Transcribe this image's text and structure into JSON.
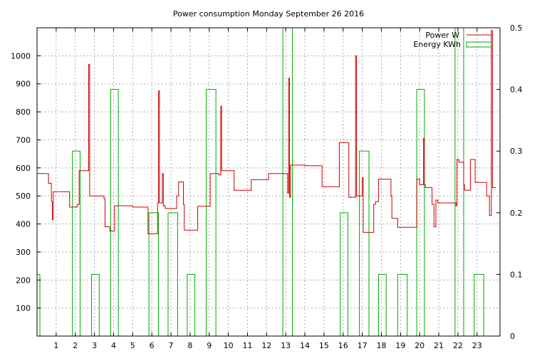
{
  "chart_data": {
    "type": "line",
    "title": "Power consumption Monday September 26 2016",
    "xlabel": "",
    "ylabel": "",
    "grid": true,
    "legend_position": "top-right",
    "x_ticks": [
      1,
      2,
      3,
      4,
      5,
      6,
      7,
      8,
      9,
      10,
      11,
      12,
      13,
      14,
      15,
      16,
      17,
      18,
      19,
      20,
      21,
      22,
      23
    ],
    "xlim": [
      0,
      24.2
    ],
    "y_ticks": [
      100,
      200,
      300,
      400,
      500,
      600,
      700,
      800,
      900,
      1000
    ],
    "ylim": [
      0,
      1100
    ],
    "y2_ticks": [
      0,
      0.1,
      0.2,
      0.3,
      0.4,
      0.5
    ],
    "y2lim": [
      0,
      0.5
    ],
    "series": [
      {
        "name": "Power W",
        "axis": "y",
        "color": "#cc0000",
        "style": "step",
        "points": [
          [
            0.0,
            580
          ],
          [
            0.6,
            545
          ],
          [
            0.75,
            480
          ],
          [
            0.8,
            415
          ],
          [
            0.85,
            515
          ],
          [
            1.7,
            460
          ],
          [
            2.1,
            470
          ],
          [
            2.2,
            590
          ],
          [
            2.7,
            970
          ],
          [
            2.75,
            500
          ],
          [
            3.5,
            490
          ],
          [
            3.55,
            390
          ],
          [
            3.8,
            375
          ],
          [
            4.05,
            465
          ],
          [
            5.0,
            460
          ],
          [
            5.8,
            365
          ],
          [
            6.3,
            475
          ],
          [
            6.35,
            875
          ],
          [
            6.4,
            475
          ],
          [
            6.55,
            580
          ],
          [
            6.6,
            465
          ],
          [
            6.7,
            455
          ],
          [
            7.3,
            500
          ],
          [
            7.4,
            550
          ],
          [
            7.65,
            470
          ],
          [
            7.7,
            378
          ],
          [
            8.4,
            463
          ],
          [
            9.05,
            580
          ],
          [
            9.5,
            575
          ],
          [
            9.6,
            820
          ],
          [
            9.65,
            590
          ],
          [
            10.3,
            520
          ],
          [
            11.2,
            558
          ],
          [
            12.1,
            580
          ],
          [
            13.1,
            510
          ],
          [
            13.15,
            920
          ],
          [
            13.2,
            495
          ],
          [
            13.25,
            610
          ],
          [
            14.0,
            608
          ],
          [
            14.9,
            533
          ],
          [
            15.8,
            690
          ],
          [
            16.3,
            495
          ],
          [
            16.65,
            1000
          ],
          [
            16.7,
            500
          ],
          [
            17.0,
            565
          ],
          [
            17.05,
            370
          ],
          [
            17.6,
            470
          ],
          [
            17.7,
            480
          ],
          [
            17.85,
            560
          ],
          [
            18.5,
            500
          ],
          [
            18.55,
            420
          ],
          [
            18.85,
            388
          ],
          [
            19.85,
            560
          ],
          [
            20.0,
            540
          ],
          [
            20.2,
            705
          ],
          [
            20.25,
            540
          ],
          [
            20.3,
            530
          ],
          [
            20.65,
            470
          ],
          [
            20.75,
            390
          ],
          [
            20.85,
            485
          ],
          [
            20.95,
            475
          ],
          [
            21.9,
            465
          ],
          [
            21.95,
            630
          ],
          [
            22.05,
            620
          ],
          [
            22.3,
            540
          ],
          [
            22.35,
            520
          ],
          [
            22.65,
            630
          ],
          [
            22.9,
            548
          ],
          [
            23.5,
            500
          ],
          [
            23.65,
            430
          ],
          [
            23.75,
            1090
          ],
          [
            23.8,
            530
          ],
          [
            24.0,
            530
          ]
        ]
      },
      {
        "name": "Energy KWh",
        "axis": "y2",
        "color": "#00aa00",
        "style": "bars",
        "bars": [
          [
            -0.1,
            0.15,
            0.1
          ],
          [
            1.85,
            2.25,
            0.3
          ],
          [
            2.85,
            3.25,
            0.1
          ],
          [
            3.85,
            4.25,
            0.4
          ],
          [
            5.85,
            6.35,
            0.2
          ],
          [
            6.85,
            7.35,
            0.2
          ],
          [
            7.85,
            8.25,
            0.1
          ],
          [
            8.85,
            9.35,
            0.4
          ],
          [
            12.85,
            13.35,
            0.5
          ],
          [
            15.85,
            16.25,
            0.2
          ],
          [
            16.85,
            17.35,
            0.3
          ],
          [
            17.85,
            18.25,
            0.1
          ],
          [
            18.85,
            19.35,
            0.1
          ],
          [
            19.85,
            20.25,
            0.4
          ],
          [
            21.85,
            22.3,
            0.5
          ],
          [
            22.85,
            23.35,
            0.1
          ]
        ]
      }
    ]
  }
}
